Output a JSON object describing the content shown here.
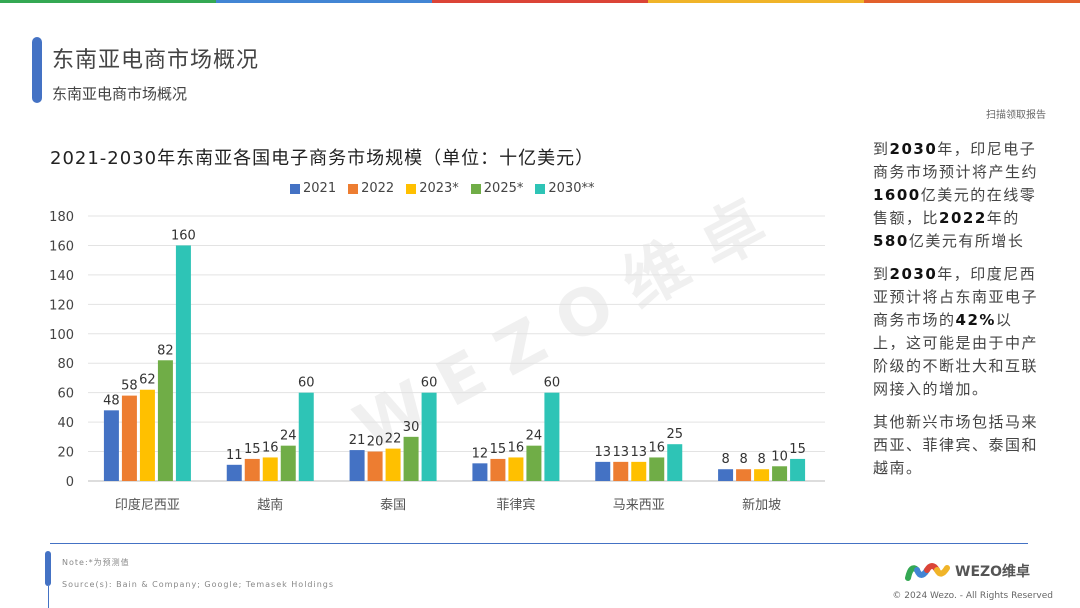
{
  "header": {
    "title": "东南亚电商市场概况",
    "subtitle": "东南亚电商市场概况",
    "scan_link": "扫描领取报告"
  },
  "top_colors": [
    "#34a853",
    "#4285d4",
    "#db4437",
    "#f0b429",
    "#e2602c"
  ],
  "chart_data": {
    "type": "bar",
    "title": "2021-2030年东南亚各国电子商务市场规模（单位：十亿美元）",
    "categories": [
      "印度尼西亚",
      "越南",
      "泰国",
      "菲律宾",
      "马来西亚",
      "新加坡"
    ],
    "series": [
      {
        "name": "2021",
        "color": "#4472c4",
        "values": [
          48,
          11,
          21,
          12,
          13,
          8
        ]
      },
      {
        "name": "2022",
        "color": "#ed7d31",
        "values": [
          58,
          15,
          20,
          15,
          13,
          8
        ]
      },
      {
        "name": "2023*",
        "color": "#ffc000",
        "values": [
          62,
          16,
          22,
          16,
          13,
          8
        ]
      },
      {
        "name": "2025*",
        "color": "#70ad47",
        "values": [
          82,
          24,
          30,
          24,
          16,
          10
        ]
      },
      {
        "name": "2030**",
        "color": "#2ec4b6",
        "values": [
          160,
          60,
          60,
          60,
          25,
          15
        ]
      }
    ],
    "ylim": [
      0,
      180
    ],
    "yticks": [
      "0",
      "20",
      "40",
      "60",
      "80",
      "100",
      "120",
      "140",
      "160",
      "180"
    ],
    "grid": true,
    "legend_position": "top"
  },
  "watermark": "WEZO维卓",
  "side": {
    "p1": [
      "到",
      "2030",
      "年，印尼电子商务市场预计将产生约",
      "1600",
      "亿美元的在线零售额，比",
      "2022",
      "年的",
      "580",
      "亿美元有所增长"
    ],
    "p2": [
      "到",
      "2030",
      "年，印度尼西亚预计将占东南亚电子商务市场的",
      "42%",
      "以上，这可能是由于中产阶级的不断壮大和互联网接入的增加。"
    ],
    "p3": "其他新兴市场包括马来西亚、菲律宾、泰国和越南。"
  },
  "footer": {
    "note": "Note:*为预测值",
    "source": "Source(s): Bain & Company; Google; Temasek Holdings",
    "logo": "WEZO维卓",
    "copyright": "© 2024 Wezo. - All Rights Reserved"
  }
}
